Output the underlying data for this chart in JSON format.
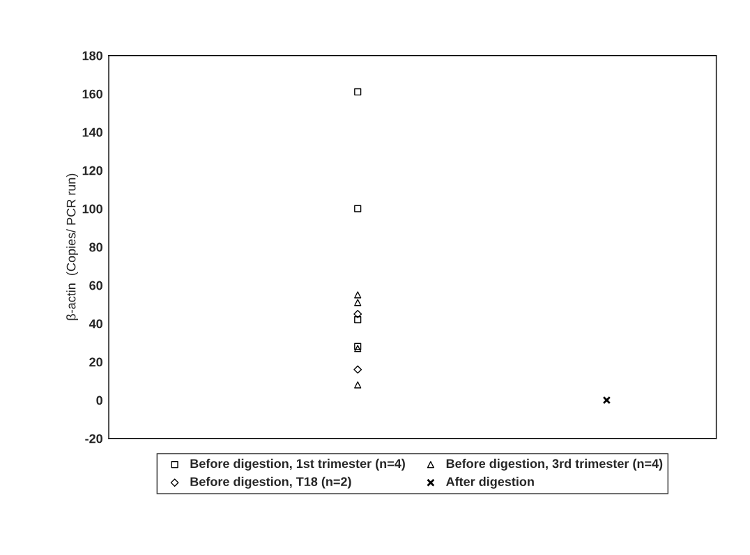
{
  "chart_data": {
    "type": "scatter",
    "ylabel": "β-actin  (Copies/ PCR run)",
    "categories": [
      null,
      null
    ],
    "series": [
      {
        "name": "Before digestion, 1st trimester (n=4)",
        "color": "#000000",
        "marker": "square",
        "values": [
          161,
          null
        ]
      },
      {
        "color": "#000000",
        "marker": "square",
        "values": [
          100,
          null
        ]
      },
      {
        "color": "#000000",
        "marker": "square",
        "values": [
          42,
          null
        ]
      },
      {
        "color": "#000000",
        "marker": "square",
        "values": [
          28,
          null
        ]
      },
      {
        "name": "Before digestion, 3rd trimester (n=4)",
        "color": "#000000",
        "marker": "triangle",
        "values": [
          55,
          null
        ]
      },
      {
        "color": "#000000",
        "marker": "triangle",
        "values": [
          51,
          null
        ]
      },
      {
        "color": "#000000",
        "marker": "triangle",
        "values": [
          27,
          null
        ]
      },
      {
        "color": "#000000",
        "marker": "triangle",
        "values": [
          8,
          null
        ]
      },
      {
        "name": "Before digestion, T18 (n=2)",
        "color": "#000000",
        "marker": "diamond",
        "values": [
          45,
          null
        ]
      },
      {
        "color": "#000000",
        "marker": "diamond",
        "values": [
          16,
          null
        ]
      },
      {
        "name": "After digestion",
        "color": "#000000",
        "marker": "cross",
        "values": [
          null,
          0
        ]
      }
    ],
    "ylim": [
      -20,
      180
    ],
    "yticks": [
      -20,
      0,
      20,
      40,
      60,
      80,
      100,
      120,
      140,
      160,
      180
    ],
    "legend": "bottom",
    "tick_labels": "y"
  }
}
